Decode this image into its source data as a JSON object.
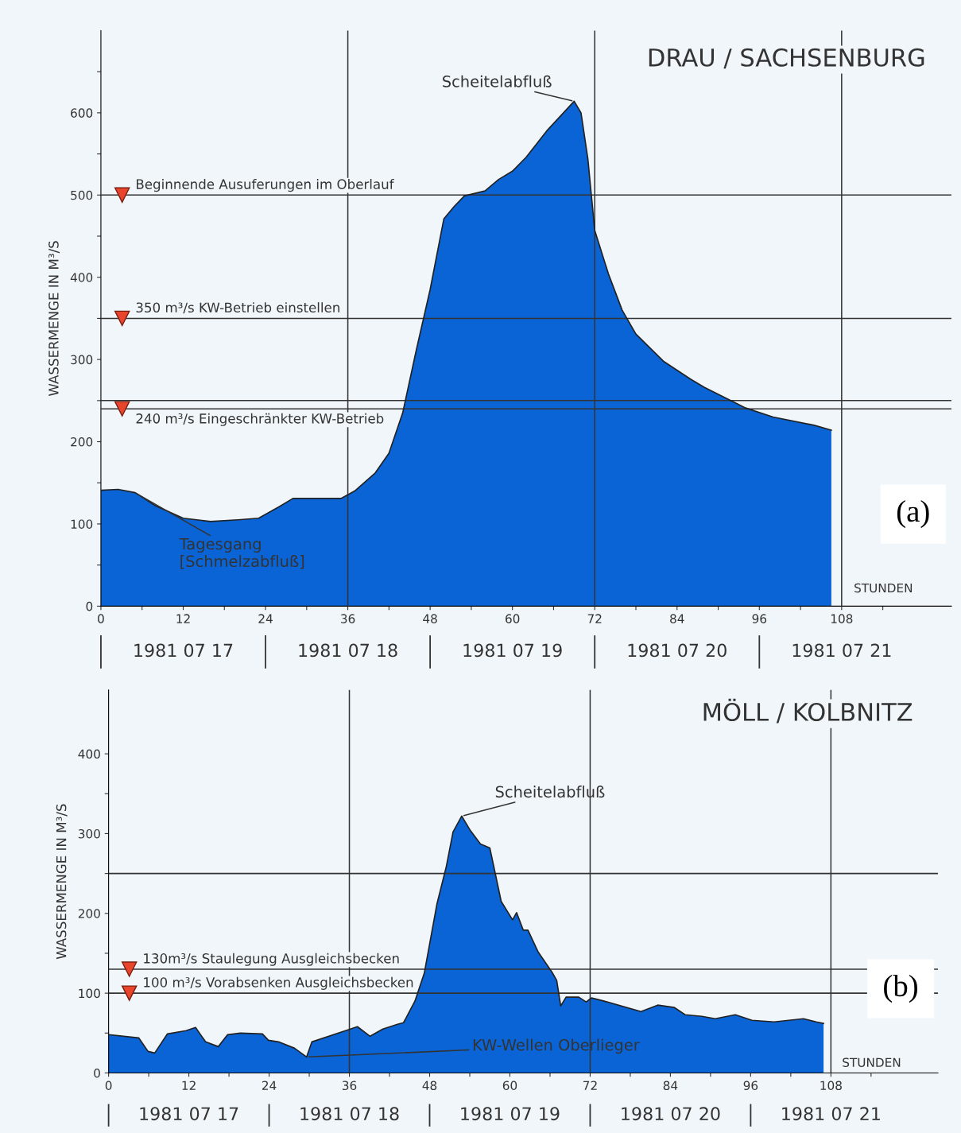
{
  "chart_data": [
    {
      "type": "area",
      "title": "DRAU / SACHSENBURG",
      "xlabel": "STUNDEN",
      "ylabel": "WASSERMENGE IN M³/S",
      "color": "#0a64d6",
      "x": [
        0,
        2.5,
        5,
        8,
        12,
        16,
        20,
        23,
        26,
        28,
        32,
        35,
        37,
        40,
        42,
        44,
        46,
        48,
        50,
        51.5,
        53,
        56,
        58,
        60,
        62,
        65,
        69,
        70,
        71,
        72,
        74,
        76,
        78,
        82,
        86,
        88,
        94,
        98,
        104,
        106.5
      ],
      "values": [
        141,
        142,
        138,
        122,
        107,
        103,
        105,
        107,
        121,
        131,
        131,
        131,
        140,
        162,
        186,
        235,
        312,
        385,
        471,
        486,
        499,
        505,
        519,
        529,
        546,
        578,
        614,
        600,
        544,
        457,
        404,
        360,
        331,
        298,
        276,
        266,
        241,
        230,
        220,
        214
      ],
      "xlim": [
        0,
        124
      ],
      "ylim": [
        0,
        700
      ],
      "xticks": [
        0,
        {
          "value": 6,
          "label": null
        },
        12,
        {
          "value": 18,
          "label": null
        },
        24,
        {
          "value": 30,
          "label": null
        },
        36,
        {
          "value": 42,
          "label": null
        },
        48,
        {
          "value": 54,
          "label": null
        },
        60,
        {
          "value": 66,
          "label": null
        },
        72,
        {
          "value": 78,
          "label": null
        },
        84,
        {
          "value": 90,
          "label": null
        },
        96,
        {
          "value": 102,
          "label": null
        },
        108,
        {
          "value": 114,
          "label": null
        }
      ],
      "yticks": [
        0,
        {
          "value": 50,
          "label": null
        },
        100,
        {
          "value": 150,
          "label": null
        },
        200,
        {
          "value": 250,
          "label": null
        },
        300,
        {
          "value": 350,
          "label": null
        },
        400,
        {
          "value": 450,
          "label": null
        },
        500,
        {
          "value": 550,
          "label": null
        },
        600,
        {
          "value": 650,
          "label": null
        }
      ],
      "ref_lines": [
        {
          "axis": "y",
          "value": 500,
          "label": "Beginnende Ausuferungen im Oberlauf",
          "color": "#333333"
        },
        {
          "axis": "y",
          "value": 350,
          "label": "350 m³/s KW-Betrieb einstellen",
          "color": "#333333"
        },
        {
          "axis": "y",
          "value": 240,
          "label": "240 m³/s Eingeschränkter KW-Betrieb",
          "color": "#333333"
        },
        {
          "axis": "y",
          "value": 250,
          "color": "#333333"
        },
        {
          "axis": "x",
          "value": 36,
          "color": "#333333"
        },
        {
          "axis": "x",
          "value": 72,
          "color": "#333333"
        },
        {
          "axis": "x",
          "value": 108,
          "color": "#333333"
        }
      ],
      "annotations": [
        {
          "text": "Scheitelabfluß",
          "x": 69,
          "y": 614
        },
        {
          "text": "Tagesgang\n[Schmelzabfluß]",
          "x": 5,
          "y": 138
        },
        "1981 07 17",
        "1981 07 18",
        "1981 07 19",
        "1981 07 20",
        "1981 07 21",
        "(a)"
      ]
    },
    {
      "type": "area",
      "title": "MÖLL / KOLBNITZ",
      "xlabel": "STUNDEN",
      "ylabel": "WASSERMENGE IN M³/S",
      "color": "#0a64d6",
      "x": [
        0,
        4.5,
        5.9,
        6.9,
        8.8,
        11.6,
        13,
        14.5,
        16.4,
        17.8,
        19.7,
        23,
        23.9,
        25.4,
        27.8,
        29.6,
        30.4,
        35.8,
        37.2,
        39.1,
        41,
        43.2,
        44.1,
        45.8,
        47.2,
        49.1,
        50.5,
        51.5,
        52.8,
        54,
        55.6,
        57,
        58.7,
        60.4,
        61,
        62,
        62.7,
        64.2,
        66.4,
        67,
        67.6,
        68.4,
        70.3,
        71.4,
        72.2,
        74.1,
        79.6,
        82.1,
        84.6,
        86.2,
        88.7,
        90.7,
        93.7,
        96.2,
        99.5,
        103.9,
        105.8,
        106.9
      ],
      "values": [
        48,
        44,
        27,
        25,
        49,
        53,
        57,
        39,
        33,
        48,
        50,
        49,
        41,
        39,
        31,
        20,
        39,
        54,
        58,
        46,
        55,
        61,
        63,
        90,
        125,
        212,
        259,
        302,
        322,
        305,
        287,
        282,
        215,
        192,
        201,
        179,
        179,
        152,
        125,
        116,
        84,
        95,
        95,
        89,
        94,
        90,
        77,
        85,
        82,
        73,
        71,
        68,
        73,
        66,
        64,
        68,
        64,
        62
      ],
      "xlim": [
        0,
        124
      ],
      "ylim": [
        0,
        480
      ],
      "xticks": [
        0,
        {
          "value": 6,
          "label": null
        },
        12,
        {
          "value": 18,
          "label": null
        },
        24,
        {
          "value": 30,
          "label": null
        },
        36,
        {
          "value": 42,
          "label": null
        },
        48,
        {
          "value": 54,
          "label": null
        },
        60,
        {
          "value": 66,
          "label": null
        },
        72,
        {
          "value": 78,
          "label": null
        },
        84,
        {
          "value": 90,
          "label": null
        },
        96,
        {
          "value": 102,
          "label": null
        },
        108,
        {
          "value": 114,
          "label": null
        }
      ],
      "yticks": [
        0,
        {
          "value": 50,
          "label": null
        },
        100,
        {
          "value": 150,
          "label": null
        },
        200,
        {
          "value": 250,
          "label": null
        },
        300,
        {
          "value": 350,
          "label": null
        },
        400
      ],
      "ref_lines": [
        {
          "axis": "y",
          "value": 130,
          "label": "130m³/s Staulegung Ausgleichsbecken",
          "color": "#333333"
        },
        {
          "axis": "y",
          "value": 100,
          "label": "100 m³/s Vorabsenken Ausgleichsbecken",
          "color": "#333333"
        },
        {
          "axis": "y",
          "value": 250,
          "color": "#333333"
        },
        {
          "axis": "x",
          "value": 36,
          "color": "#333333"
        },
        {
          "axis": "x",
          "value": 72,
          "color": "#333333"
        },
        {
          "axis": "x",
          "value": 108,
          "color": "#333333"
        }
      ],
      "annotations": [
        {
          "text": "Scheitelabfluß",
          "x": 52.8,
          "y": 322
        },
        {
          "text": "KW-Wellen Oberlieger",
          "x": 29.6,
          "y": 20
        },
        "1981 07 17",
        "1981 07 18",
        "1981 07 19",
        "1981 07 20",
        "1981 07 21",
        "(b)"
      ]
    }
  ]
}
